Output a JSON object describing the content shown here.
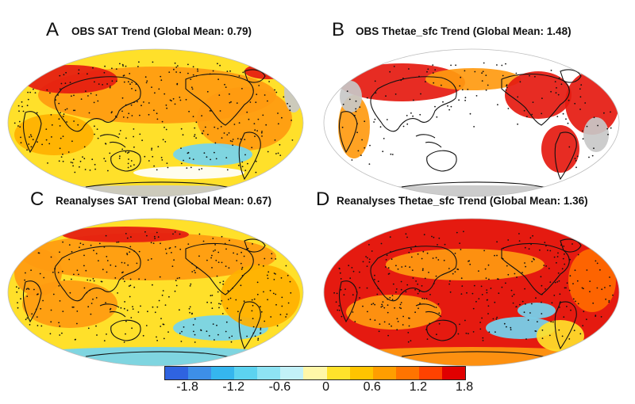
{
  "panels": [
    {
      "letter": "A",
      "title": "OBS SAT Trend (Global Mean: 0.79)",
      "variant": "obs-sat"
    },
    {
      "letter": "B",
      "title": "OBS Thetae_sfc Trend (Global Mean: 1.48)",
      "variant": "obs-thetae"
    },
    {
      "letter": "C",
      "title": "Reanalyses SAT Trend (Global Mean: 0.67)",
      "variant": "rea-sat"
    },
    {
      "letter": "D",
      "title": "Reanalyses Thetae_sfc Trend (Global Mean: 1.36)",
      "variant": "rea-thetae"
    }
  ],
  "colorbar": {
    "colors": [
      "#2f63e0",
      "#3d8fe8",
      "#35b6ee",
      "#5cd3f0",
      "#8ee4f4",
      "#c2f1f8",
      "#fff7a8",
      "#ffe22b",
      "#ffc400",
      "#ff9e00",
      "#ff7400",
      "#ff4200",
      "#e00000"
    ],
    "ticks": [
      "-1.8",
      "-1.2",
      "-0.6",
      "0",
      "0.6",
      "1.2",
      "1.8"
    ]
  },
  "palette": {
    "missing": "#c8c8c8",
    "blue": "#74d4f0",
    "yellow": "#ffe02a",
    "orange": "#ff9a10",
    "red": "#e51a10",
    "coast": "#111111"
  }
}
